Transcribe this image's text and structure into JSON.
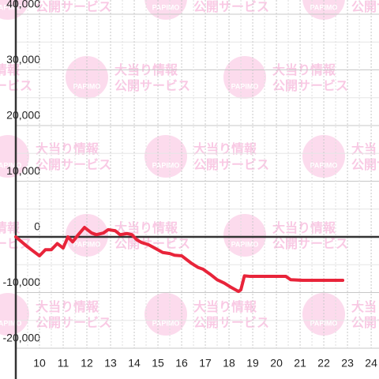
{
  "chart_data": {
    "type": "line",
    "x": [
      9.0,
      9.5,
      10.0,
      10.25,
      10.5,
      10.75,
      11.0,
      11.2,
      11.4,
      11.6,
      11.9,
      12.2,
      12.4,
      12.7,
      12.9,
      13.2,
      13.4,
      13.7,
      13.9,
      14.1,
      14.3,
      14.6,
      14.9,
      15.2,
      15.5,
      15.7,
      16.0,
      16.4,
      16.7,
      16.9,
      17.2,
      17.5,
      17.8,
      18.1,
      18.4,
      18.5,
      18.65,
      18.9,
      19.4,
      20.1,
      20.4,
      20.6,
      21.1,
      22.8
    ],
    "series": [
      {
        "color": "#e8243a",
        "values": [
          0,
          -1800,
          -3400,
          -2300,
          -2300,
          -1200,
          -2000,
          0,
          -900,
          200,
          1700,
          700,
          400,
          700,
          1300,
          1100,
          400,
          600,
          400,
          -500,
          -1000,
          -1400,
          -2100,
          -2800,
          -3000,
          -3300,
          -3400,
          -4700,
          -5500,
          -5800,
          -6700,
          -7700,
          -8300,
          -9100,
          -9800,
          -9500,
          -7000,
          -7100,
          -7100,
          -7100,
          -7100,
          -7700,
          -7800,
          -7800
        ]
      }
    ],
    "xlim": [
      9,
      24.33
    ],
    "xticks": [
      10,
      11,
      12,
      13,
      14,
      15,
      16,
      17,
      18,
      19,
      20,
      21,
      22,
      23,
      24
    ],
    "ylim": [
      -20000,
      40000
    ],
    "yticks": [
      {
        "value": -20000,
        "label": "-20,000"
      },
      {
        "value": -10000,
        "label": "-10,000"
      },
      0,
      {
        "value": 10000,
        "label": "10,000"
      },
      {
        "value": 20000,
        "label": "20,000"
      },
      {
        "value": 30000,
        "label": "30,000"
      },
      {
        "value": 40000,
        "label": "40,000"
      }
    ],
    "grid": true
  },
  "watermark": {
    "brand": "PAPIMO",
    "line1": "大当り情報",
    "line2": "公開サービス"
  }
}
